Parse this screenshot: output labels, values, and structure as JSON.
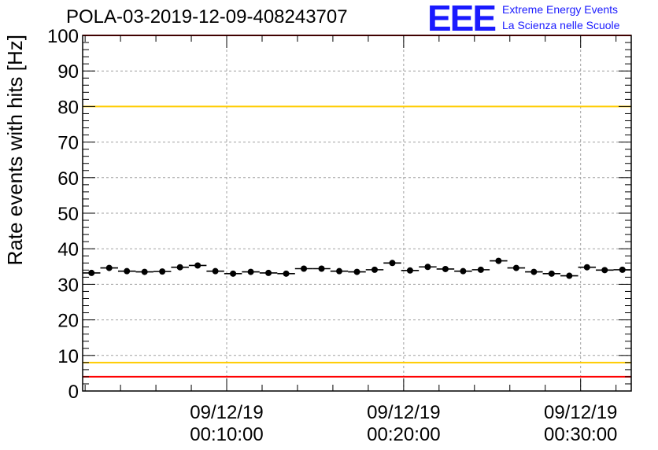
{
  "header": {
    "title": "POLA-03-2019-12-09-408243707",
    "logo_letters": "EEE",
    "logo_line1": "Extreme Energy Events",
    "logo_line2": "La Scienza nelle Scuole"
  },
  "colors": {
    "logo": "#1a1aff",
    "red_threshold": "#ff0000",
    "yellow_threshold": "#ffcc00",
    "points": "#000000",
    "grid": "#a0a0a0"
  },
  "chart_data": {
    "type": "scatter",
    "title": "POLA-03-2019-12-09-408243707",
    "xlabel": "",
    "ylabel": "Rate events with hits [Hz]",
    "ylim": [
      0,
      100
    ],
    "yticks": [
      0,
      10,
      20,
      30,
      40,
      50,
      60,
      70,
      80,
      90,
      100
    ],
    "xlim_minutes": [
      -0.14,
      30.86
    ],
    "xticks": [
      {
        "minute": 8,
        "date": "09/12/19",
        "time": "00:10:00"
      },
      {
        "minute": 18,
        "date": "09/12/19",
        "time": "00:20:00"
      },
      {
        "minute": 28,
        "date": "09/12/19",
        "time": "00:30:00"
      }
    ],
    "grid": true,
    "series": [
      {
        "x_minutes": [
          0.36,
          1.36,
          2.36,
          3.36,
          4.36,
          5.36,
          6.36,
          7.36,
          8.36,
          9.36,
          10.36,
          11.36,
          12.36,
          13.36,
          14.36,
          15.36,
          16.36,
          17.36,
          18.36,
          19.36,
          20.36,
          21.36,
          22.36,
          23.36,
          24.36,
          25.36,
          26.36,
          27.36,
          28.36,
          29.36,
          30.36
        ],
        "values": [
          33.2,
          34.6,
          33.7,
          33.5,
          33.6,
          34.8,
          35.3,
          33.7,
          33.0,
          33.5,
          33.2,
          33.0,
          34.4,
          34.4,
          33.7,
          33.5,
          34.1,
          36.0,
          33.9,
          34.9,
          34.3,
          33.7,
          34.1,
          36.6,
          34.6,
          33.5,
          33.0,
          32.4,
          34.8,
          34.0,
          34.1
        ]
      }
    ],
    "reference_lines": [
      {
        "value": 100,
        "color": "#ff0000"
      },
      {
        "value": 80,
        "color": "#ffcc00"
      },
      {
        "value": 8,
        "color": "#ffcc00"
      },
      {
        "value": 4,
        "color": "#ff0000"
      }
    ]
  }
}
